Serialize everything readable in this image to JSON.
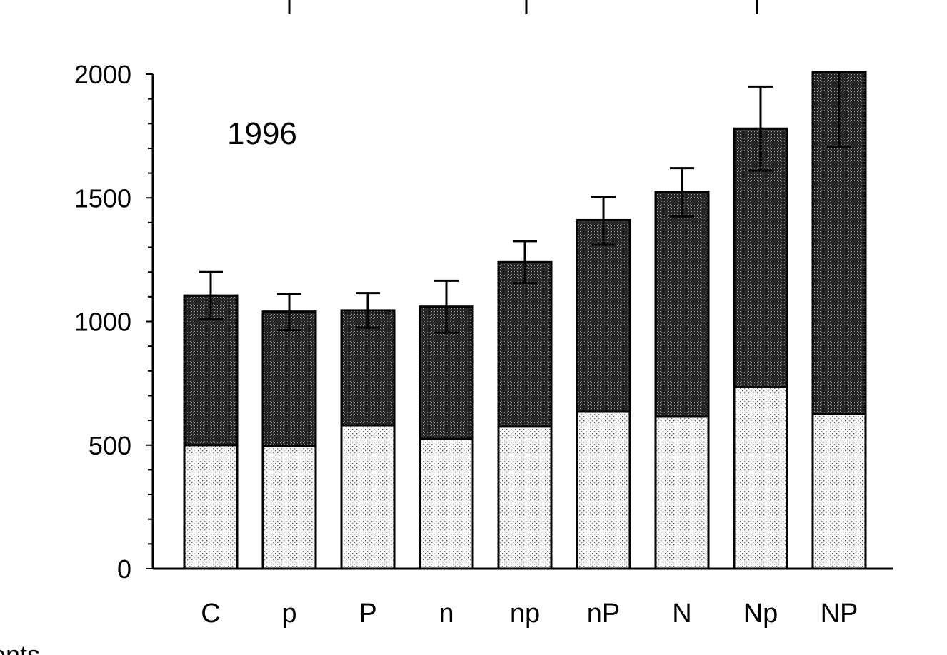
{
  "chart_data": {
    "type": "bar",
    "stacked": true,
    "annotation": "1996",
    "categories": [
      "C",
      "p",
      "P",
      "n",
      "np",
      "nP",
      "N",
      "Np",
      "NP"
    ],
    "series": [
      {
        "fill": "light-stipple",
        "color": "#f3f3f3",
        "values": [
          500,
          495,
          580,
          525,
          575,
          635,
          615,
          735,
          625
        ]
      },
      {
        "fill": "dark-stipple",
        "color": "#2f2f2f",
        "values": [
          605,
          545,
          465,
          535,
          665,
          775,
          910,
          1045,
          1385
        ]
      }
    ],
    "error_bars": [
      {
        "center": 1105,
        "upper": 1200,
        "lower": 1010
      },
      {
        "center": 1040,
        "upper": 1110,
        "lower": 965
      },
      {
        "center": 1045,
        "upper": 1115,
        "lower": 975
      },
      {
        "center": 1060,
        "upper": 1165,
        "lower": 955
      },
      {
        "center": 1240,
        "upper": 1325,
        "lower": 1155
      },
      {
        "center": 1410,
        "upper": 1505,
        "lower": 1310
      },
      {
        "center": 1525,
        "upper": 1620,
        "lower": 1425
      },
      {
        "center": 1780,
        "upper": 1950,
        "lower": 1610
      },
      {
        "center": 2010,
        "upper": 2010,
        "lower": 1705
      }
    ],
    "y_ticks": [
      0,
      500,
      1000,
      1500,
      2000
    ],
    "y_minor_step": 100,
    "ylim": [
      0,
      2000
    ],
    "xlabel": "",
    "ylabel": "",
    "grid": false,
    "legend": "none"
  },
  "fragments": {
    "bottom_left": "ents"
  }
}
